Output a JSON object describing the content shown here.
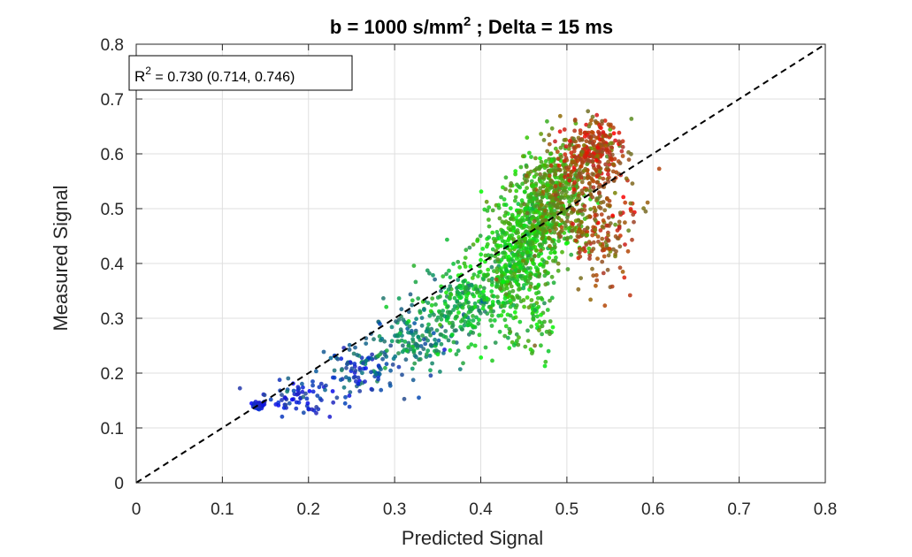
{
  "chart_data": {
    "type": "scatter",
    "title_main": "b = 1000 s/mm",
    "title_sup": "2",
    "title_rest": " ; Delta = 15 ms",
    "xlabel": "Predicted Signal",
    "ylabel": "Measured Signal",
    "xlim": [
      0,
      0.8
    ],
    "ylim": [
      0,
      0.8
    ],
    "xticks": [
      "0",
      "0.1",
      "0.2",
      "0.3",
      "0.4",
      "0.5",
      "0.6",
      "0.7",
      "0.8"
    ],
    "yticks": [
      "0",
      "0.1",
      "0.2",
      "0.3",
      "0.4",
      "0.5",
      "0.6",
      "0.7",
      "0.8"
    ],
    "grid": true,
    "annotation": {
      "r": "R",
      "sup": "2",
      "rest": " = 0.730 (0.714, 0.746)",
      "placement": "top-left"
    },
    "identity_line": {
      "x": [
        0,
        0.8
      ],
      "y": [
        0,
        0.8
      ],
      "style": "dashed",
      "color": "#000000"
    },
    "color_gradient": [
      "#0000ff",
      "#00ff00",
      "#ff0000"
    ],
    "scatter_clusters": [
      {
        "cx": 0.143,
        "cy": 0.142,
        "sx": 0.004,
        "sy": 0.004,
        "n": 40,
        "t": 0.0
      },
      {
        "cx": 0.19,
        "cy": 0.155,
        "sx": 0.02,
        "sy": 0.015,
        "n": 70,
        "t": 0.05
      },
      {
        "cx": 0.26,
        "cy": 0.205,
        "sx": 0.025,
        "sy": 0.025,
        "n": 110,
        "t": 0.15
      },
      {
        "cx": 0.32,
        "cy": 0.26,
        "sx": 0.025,
        "sy": 0.03,
        "n": 150,
        "t": 0.28
      },
      {
        "cx": 0.38,
        "cy": 0.32,
        "sx": 0.025,
        "sy": 0.035,
        "n": 220,
        "t": 0.4
      },
      {
        "cx": 0.43,
        "cy": 0.39,
        "sx": 0.022,
        "sy": 0.045,
        "n": 320,
        "t": 0.5
      },
      {
        "cx": 0.46,
        "cy": 0.47,
        "sx": 0.02,
        "sy": 0.05,
        "n": 420,
        "t": 0.55
      },
      {
        "cx": 0.49,
        "cy": 0.53,
        "sx": 0.018,
        "sy": 0.045,
        "n": 380,
        "t": 0.68
      },
      {
        "cx": 0.53,
        "cy": 0.6,
        "sx": 0.018,
        "sy": 0.03,
        "n": 320,
        "t": 0.88
      },
      {
        "cx": 0.54,
        "cy": 0.47,
        "sx": 0.02,
        "sy": 0.05,
        "n": 200,
        "t": 0.85
      },
      {
        "cx": 0.46,
        "cy": 0.3,
        "sx": 0.015,
        "sy": 0.04,
        "n": 80,
        "t": 0.55
      }
    ]
  }
}
